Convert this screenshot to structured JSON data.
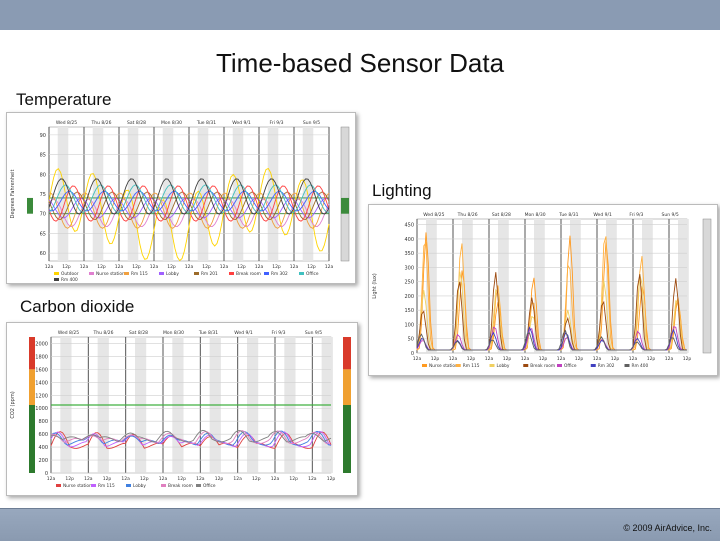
{
  "slide": {
    "title": "Time-based Sensor Data",
    "copyright": "© 2009 AirAdvice, Inc."
  },
  "chart_data": [
    {
      "id": "temperature",
      "type": "line",
      "title": "Temperature",
      "ylabel": "Degrees Fahrenheit",
      "yticks": [
        60,
        65,
        70,
        75,
        80,
        85,
        90
      ],
      "ylim": [
        58,
        92
      ],
      "comfort_band": [
        70,
        74
      ],
      "gauge_colors": [
        "#3b8a3b",
        "#d8d8d8"
      ],
      "top_labels": [
        "Wed 8/25",
        "Thu 8/26",
        "Sat 8/28",
        "Mon 8/30",
        "Tue 8/31",
        "Wed 9/1",
        "Fri 9/3",
        "Sun 9/5"
      ],
      "x_labels": [
        "12a",
        "12p",
        "12a",
        "12p",
        "12a",
        "12p",
        "12a",
        "12p",
        "12a",
        "12p",
        "12a",
        "12p",
        "12a",
        "12p",
        "12a",
        "12p",
        "12a"
      ],
      "legend": [
        "Outdoor",
        "Nurse station",
        "Rm 115",
        "Lobby",
        "Rm 201",
        "Break room",
        "Rm 302",
        "Office",
        "Rm 400"
      ],
      "series_colors": [
        "#ffd400",
        "#e080d0",
        "#f0a040",
        "#a060ff",
        "#9c6b2a",
        "#ff4040",
        "#4060ff",
        "#40c0c0",
        "#404040"
      ]
    },
    {
      "id": "lighting",
      "type": "line",
      "title": "Lighting",
      "ylabel": "Light (lux)",
      "yticks": [
        0,
        50,
        100,
        150,
        200,
        250,
        300,
        350,
        400,
        450
      ],
      "ylim": [
        0,
        470
      ],
      "gauge_colors": [
        "#3b8a3b",
        "#d8d8d8"
      ],
      "top_labels": [
        "Wed 8/25",
        "Thu 8/26",
        "Sat 8/28",
        "Mon 8/30",
        "Tue 8/31",
        "Wed 9/1",
        "Fri 9/3",
        "Sun 9/5"
      ],
      "x_labels": [
        "12a",
        "12p",
        "12a",
        "12p",
        "12a",
        "12p",
        "12a",
        "12p",
        "12a",
        "12p",
        "12a",
        "12p",
        "12a",
        "12p",
        "12a",
        "12p"
      ],
      "legend": [
        "Nurse station",
        "Rm 115",
        "Lobby",
        "Break room",
        "Office",
        "Rm 302",
        "Rm 400"
      ],
      "series_colors": [
        "#ff9a20",
        "#ffb040",
        "#f0d060",
        "#9c4a10",
        "#c040c0",
        "#4040c0",
        "#606060"
      ]
    },
    {
      "id": "co2",
      "type": "line",
      "title": "Carbon dioxide",
      "ylabel": "CO2 (ppm)",
      "yticks": [
        0,
        200,
        400,
        600,
        800,
        1000,
        1200,
        1400,
        1600,
        1800,
        2000
      ],
      "ylim": [
        0,
        2100
      ],
      "threshold": 1050,
      "gauge_colors": [
        "#2d7a2d",
        "#d93a2a",
        "#f0a030"
      ],
      "top_labels": [
        "Wed 8/25",
        "Thu 8/26",
        "Sat 8/28",
        "Mon 8/30",
        "Tue 8/31",
        "Wed 9/1",
        "Fri 9/3",
        "Sun 9/5"
      ],
      "x_labels": [
        "12a",
        "12p",
        "12a",
        "12p",
        "12a",
        "12p",
        "12a",
        "12p",
        "12a",
        "12p",
        "12a",
        "12p",
        "12a",
        "12p",
        "12a",
        "12p"
      ],
      "legend": [
        "Nurse station",
        "Rm 115",
        "Lobby",
        "Break room",
        "Office"
      ],
      "series_colors": [
        "#e04040",
        "#c060ff",
        "#4080e0",
        "#e080c0",
        "#808080"
      ]
    }
  ]
}
